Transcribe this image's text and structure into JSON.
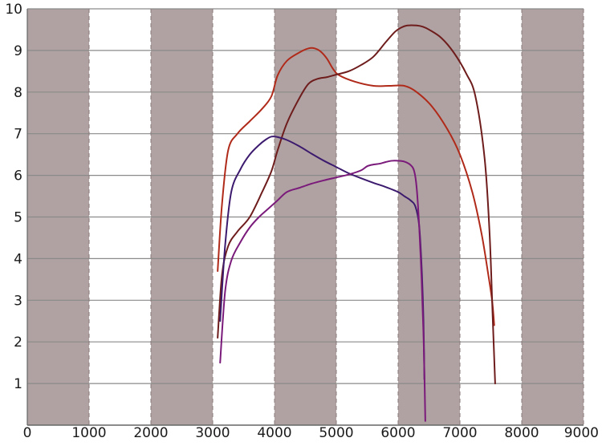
{
  "chart_data": {
    "type": "line",
    "title": "",
    "xlabel": "",
    "ylabel": "",
    "xlim": [
      0,
      9000
    ],
    "ylim": [
      0,
      10
    ],
    "x_ticks": [
      0,
      1000,
      2000,
      3000,
      4000,
      5000,
      6000,
      7000,
      8000,
      9000
    ],
    "y_ticks": [
      1,
      2,
      3,
      4,
      5,
      6,
      7,
      8,
      9,
      10
    ],
    "grid": "horizontal lines; alternating shaded vertical bands every 1000",
    "background_colors": {
      "band": "#b0a2a2",
      "plot": "#ffffff",
      "gridline": "#8a8a8a"
    },
    "series": [
      {
        "color": "#b02a1a",
        "x": [
          3080,
          3150,
          3250,
          3400,
          3600,
          3800,
          3950,
          4050,
          4200,
          4400,
          4550,
          4650,
          4750,
          4850,
          4950,
          5050,
          5300,
          5600,
          5850,
          6100,
          6300,
          6550,
          6800,
          7000,
          7200,
          7350,
          7450,
          7520,
          7555
        ],
        "y": [
          3.7,
          5.3,
          6.6,
          7.0,
          7.3,
          7.6,
          7.9,
          8.4,
          8.75,
          8.95,
          9.05,
          9.05,
          8.97,
          8.8,
          8.55,
          8.4,
          8.25,
          8.15,
          8.15,
          8.15,
          8.0,
          7.65,
          7.1,
          6.5,
          5.6,
          4.6,
          3.7,
          3.0,
          2.4
        ]
      },
      {
        "color": "#6e1c1c",
        "x": [
          3080,
          3150,
          3250,
          3400,
          3600,
          3800,
          3950,
          4050,
          4200,
          4400,
          4550,
          4700,
          4850,
          5000,
          5200,
          5400,
          5600,
          5800,
          5950,
          6050,
          6150,
          6300,
          6400,
          6500,
          6700,
          6900,
          7100,
          7250,
          7400,
          7480,
          7530,
          7570
        ],
        "y": [
          2.1,
          3.6,
          4.3,
          4.65,
          5.0,
          5.6,
          6.1,
          6.6,
          7.25,
          7.85,
          8.2,
          8.32,
          8.36,
          8.42,
          8.5,
          8.65,
          8.85,
          9.2,
          9.45,
          9.55,
          9.6,
          9.6,
          9.57,
          9.5,
          9.3,
          8.95,
          8.45,
          7.9,
          6.4,
          4.6,
          2.6,
          1.0
        ]
      },
      {
        "color": "#3c1a6e",
        "x": [
          3120,
          3200,
          3300,
          3450,
          3600,
          3750,
          3850,
          3950,
          4050,
          4200,
          4400,
          4600,
          4800,
          5000,
          5200,
          5400,
          5600,
          5800,
          6000,
          6100,
          6200,
          6280,
          6340,
          6380,
          6410,
          6425
        ],
        "y": [
          2.5,
          4.3,
          5.6,
          6.15,
          6.5,
          6.73,
          6.85,
          6.93,
          6.92,
          6.85,
          6.7,
          6.52,
          6.35,
          6.2,
          6.05,
          5.93,
          5.82,
          5.72,
          5.6,
          5.5,
          5.4,
          5.25,
          4.8,
          3.8,
          2.5,
          1.1
        ]
      },
      {
        "color": "#7a1a7a",
        "x": [
          3120,
          3200,
          3300,
          3450,
          3600,
          3750,
          3900,
          4050,
          4200,
          4400,
          4600,
          4800,
          5000,
          5200,
          5400,
          5500,
          5600,
          5700,
          5800,
          5900,
          6000,
          6100,
          6200,
          6260,
          6300,
          6340,
          6380,
          6410,
          6430,
          6440
        ],
        "y": [
          1.5,
          3.2,
          3.95,
          4.4,
          4.75,
          5.0,
          5.2,
          5.4,
          5.6,
          5.7,
          5.8,
          5.88,
          5.95,
          6.02,
          6.12,
          6.22,
          6.26,
          6.28,
          6.32,
          6.35,
          6.35,
          6.33,
          6.25,
          6.1,
          5.7,
          4.8,
          3.5,
          2.2,
          0.9,
          0.1
        ]
      }
    ]
  }
}
